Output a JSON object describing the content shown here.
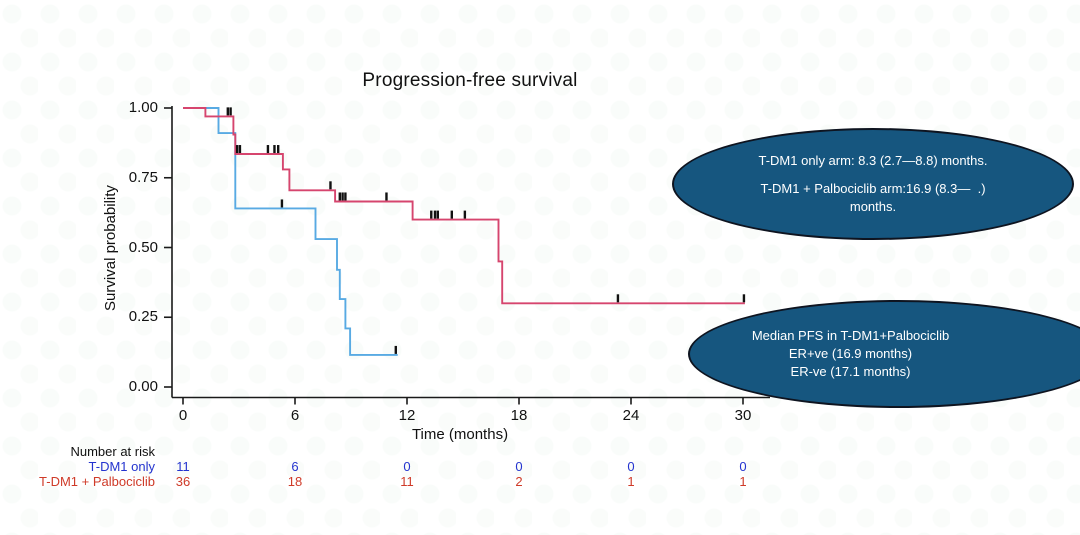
{
  "chart_data": {
    "type": "line",
    "subtype": "kaplan-meier-step",
    "title": "Progression-free survival",
    "xlabel": "Time (months)",
    "ylabel": "Survival probability",
    "xlim": [
      0,
      30.5
    ],
    "ylim": [
      0,
      1
    ],
    "x_ticks": [
      0,
      6,
      12,
      18,
      24,
      30
    ],
    "y_ticks": [
      "1.00",
      "0.75",
      "0.50",
      "0.25",
      "0.00"
    ],
    "grid": false,
    "legend": "none",
    "series": [
      {
        "name": "T-DM1 only",
        "color": "#58aae3",
        "steps": [
          [
            0,
            1.0
          ],
          [
            1.9,
            1.0
          ],
          [
            1.9,
            0.91
          ],
          [
            2.8,
            0.91
          ],
          [
            2.8,
            0.64
          ],
          [
            7.1,
            0.64
          ],
          [
            7.1,
            0.53
          ],
          [
            8.25,
            0.53
          ],
          [
            8.25,
            0.42
          ],
          [
            8.4,
            0.42
          ],
          [
            8.4,
            0.315
          ],
          [
            8.7,
            0.315
          ],
          [
            8.7,
            0.21
          ],
          [
            8.95,
            0.21
          ],
          [
            8.95,
            0.115
          ],
          [
            11.5,
            0.115
          ]
        ],
        "censors": [
          [
            5.3,
            0.64
          ],
          [
            11.4,
            0.115
          ]
        ]
      },
      {
        "name": "T-DM1 + Palbociclib",
        "color": "#d6456e",
        "steps": [
          [
            0,
            1.0
          ],
          [
            1.2,
            1.0
          ],
          [
            1.2,
            0.97
          ],
          [
            2.7,
            0.97
          ],
          [
            2.7,
            0.905
          ],
          [
            2.8,
            0.905
          ],
          [
            2.8,
            0.835
          ],
          [
            5.35,
            0.835
          ],
          [
            5.35,
            0.78
          ],
          [
            5.7,
            0.78
          ],
          [
            5.7,
            0.705
          ],
          [
            8.15,
            0.705
          ],
          [
            8.15,
            0.665
          ],
          [
            12.3,
            0.665
          ],
          [
            12.3,
            0.6
          ],
          [
            16.9,
            0.6
          ],
          [
            16.9,
            0.45
          ],
          [
            17.1,
            0.45
          ],
          [
            17.1,
            0.3
          ],
          [
            30.1,
            0.3
          ]
        ],
        "censors": [
          [
            2.4,
            0.97
          ],
          [
            2.55,
            0.97
          ],
          [
            2.9,
            0.835
          ],
          [
            3.05,
            0.835
          ],
          [
            4.55,
            0.835
          ],
          [
            4.9,
            0.835
          ],
          [
            5.1,
            0.835
          ],
          [
            7.9,
            0.705
          ],
          [
            8.4,
            0.665
          ],
          [
            8.55,
            0.665
          ],
          [
            8.7,
            0.665
          ],
          [
            10.9,
            0.665
          ],
          [
            13.3,
            0.6
          ],
          [
            13.5,
            0.6
          ],
          [
            13.65,
            0.6
          ],
          [
            14.4,
            0.6
          ],
          [
            15.1,
            0.6
          ],
          [
            23.3,
            0.3
          ],
          [
            30.05,
            0.3
          ]
        ]
      }
    ]
  },
  "annotations": {
    "top_ellipse": {
      "fill": "#16567f",
      "line1": "T-DM1 only arm: 8.3 (2.7—8.8) months.",
      "line2": "T-DM1 + Palbociclib arm:16.9 (8.3—  .)",
      "line3": "months."
    },
    "bottom_ellipse": {
      "fill": "#16567f",
      "line1": "Median PFS in T-DM1+Palbociclib",
      "line2": "ER+ve (16.9 months)",
      "line3": "ER-ve (17.1 months)"
    }
  },
  "risk_table": {
    "header": "Number at risk",
    "rows": [
      {
        "label": "T-DM1 only",
        "color": "#2433cf",
        "values": [
          "11",
          "6",
          "0",
          "0",
          "0",
          "0"
        ]
      },
      {
        "label": "T-DM1 + Palbociclib",
        "color": "#cf3a28",
        "values": [
          "36",
          "18",
          "11",
          "2",
          "1",
          "1"
        ]
      }
    ]
  }
}
